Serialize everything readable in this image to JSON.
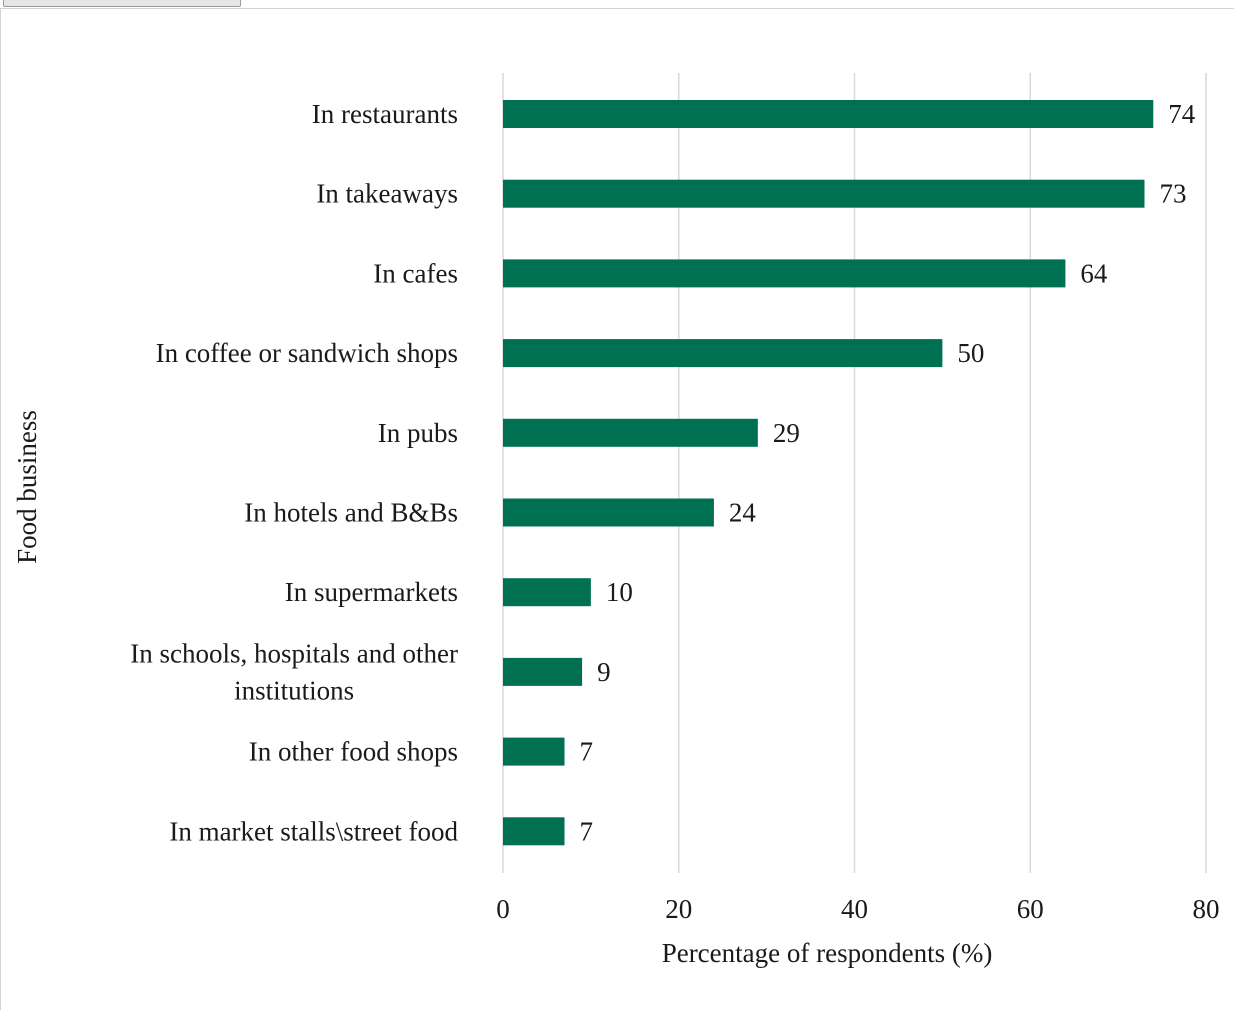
{
  "chart_data": {
    "type": "bar",
    "orientation": "horizontal",
    "categories": [
      "In restaurants",
      "In takeaways",
      "In cafes",
      "In coffee or sandwich shops",
      "In pubs",
      "In hotels and B&Bs",
      "In supermarkets",
      "In schools, hospitals and other institutions",
      "In other food shops",
      "In market stalls\\street food"
    ],
    "category_lines": [
      [
        "In restaurants"
      ],
      [
        "In takeaways"
      ],
      [
        "In cafes"
      ],
      [
        "In coffee or sandwich shops"
      ],
      [
        "In pubs"
      ],
      [
        "In hotels and B&Bs"
      ],
      [
        "In supermarkets"
      ],
      [
        "In schools, hospitals and other",
        "institutions"
      ],
      [
        "In other food shops"
      ],
      [
        "In market stalls\\street food"
      ]
    ],
    "values": [
      74,
      73,
      64,
      50,
      29,
      24,
      10,
      9,
      7,
      7
    ],
    "data_labels": [
      "74",
      "73",
      "64",
      "50",
      "29",
      "24",
      "10",
      "9",
      "7",
      "7"
    ],
    "xlabel": "Percentage of respondents (%)",
    "ylabel": "Food business",
    "xlim": [
      0,
      80
    ],
    "x_ticks": [
      0,
      20,
      40,
      60,
      80
    ],
    "x_tick_labels": [
      "0",
      "20",
      "40",
      "60",
      "80"
    ],
    "grid": "vertical",
    "legend": "none",
    "bar_color": "#007052",
    "gridline_color": "#d9d9d9"
  }
}
